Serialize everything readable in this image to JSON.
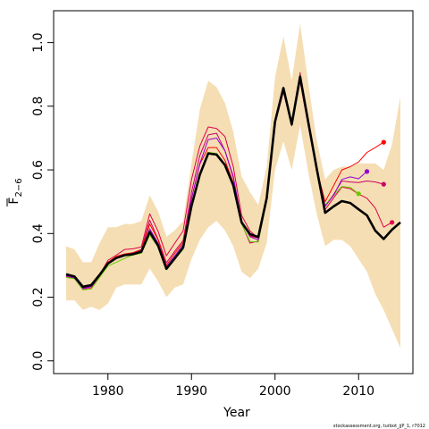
{
  "chart_data": {
    "type": "line",
    "xlabel": "Year",
    "ylabel_main": "F",
    "ylabel_sub": "2−6",
    "credit": "stockassessment.org, turbot_jjP_1, r7012",
    "xlim": [
      1973.5,
      2016.5
    ],
    "ylim": [
      -0.04,
      1.1
    ],
    "xticks": [
      1980,
      1990,
      2000,
      2010
    ],
    "yticks": [
      0.0,
      0.2,
      0.4,
      0.6,
      0.8,
      1.0
    ],
    "ytick_labels": [
      "0.0",
      "0.2",
      "0.4",
      "0.6",
      "0.8",
      "1.0"
    ],
    "colors": {
      "band": "#f5deb3",
      "main": "#000000",
      "retro": [
        "#ff1493",
        "#e0004a",
        "#cc0066",
        "#66cc00",
        "#ff0000",
        "#9400d3"
      ]
    },
    "band": {
      "x": [
        1975,
        1976,
        1977,
        1978,
        1979,
        1980,
        1981,
        1982,
        1983,
        1984,
        1985,
        1986,
        1987,
        1988,
        1989,
        1990,
        1991,
        1992,
        1993,
        1994,
        1995,
        1996,
        1997,
        1998,
        1999,
        2000,
        2001,
        2002,
        2003,
        2004,
        2005,
        2006,
        2007,
        2008,
        2009,
        2010,
        2011,
        2012,
        2013,
        2014,
        2015
      ],
      "upper": [
        0.36,
        0.35,
        0.31,
        0.31,
        0.37,
        0.42,
        0.42,
        0.43,
        0.43,
        0.44,
        0.52,
        0.47,
        0.39,
        0.41,
        0.44,
        0.62,
        0.79,
        0.88,
        0.86,
        0.81,
        0.72,
        0.58,
        0.53,
        0.49,
        0.61,
        0.89,
        1.02,
        0.88,
        1.06,
        0.87,
        0.69,
        0.57,
        0.6,
        0.61,
        0.61,
        0.62,
        0.62,
        0.62,
        0.6,
        0.68,
        0.83
      ],
      "lower": [
        0.19,
        0.19,
        0.16,
        0.17,
        0.16,
        0.18,
        0.23,
        0.24,
        0.24,
        0.24,
        0.29,
        0.25,
        0.2,
        0.23,
        0.24,
        0.32,
        0.38,
        0.42,
        0.44,
        0.41,
        0.36,
        0.28,
        0.26,
        0.29,
        0.37,
        0.6,
        0.69,
        0.6,
        0.74,
        0.59,
        0.46,
        0.36,
        0.38,
        0.38,
        0.36,
        0.32,
        0.28,
        0.21,
        0.16,
        0.1,
        0.04
      ]
    },
    "series": [
      {
        "x": [
          1975,
          1976,
          1977,
          1978,
          1979,
          1980,
          1981,
          1982,
          1983,
          1984,
          1985,
          1986,
          1987,
          1988,
          1989,
          1990,
          1991,
          1992,
          1993,
          1994,
          1995,
          1996,
          1997,
          1998,
          1999,
          2000,
          2001,
          2002,
          2003,
          2004,
          2005,
          2006,
          2007,
          2008,
          2009,
          2010,
          2011,
          2012,
          2013,
          2014,
          2015
        ],
        "values": [
          0.272,
          0.265,
          0.233,
          0.238,
          0.27,
          0.306,
          0.323,
          0.332,
          0.335,
          0.343,
          0.405,
          0.362,
          0.289,
          0.322,
          0.356,
          0.487,
          0.585,
          0.652,
          0.648,
          0.615,
          0.552,
          0.435,
          0.398,
          0.389,
          0.511,
          0.751,
          0.857,
          0.743,
          0.893,
          0.747,
          0.602,
          0.465,
          0.485,
          0.502,
          0.496,
          0.476,
          0.457,
          0.409,
          0.383,
          0.412,
          0.435
        ]
      },
      {
        "x": [
          1975,
          1976,
          1977,
          1978,
          1979,
          1980,
          1981,
          1982,
          1983,
          1984,
          1985,
          1986,
          1987,
          1988,
          1989,
          1990,
          1991,
          1992,
          1993,
          1994,
          1995,
          1996,
          1997,
          1998,
          1999,
          2000,
          2001,
          2002,
          2003,
          2004,
          2005,
          2006,
          2007,
          2008,
          2009,
          2010,
          2011,
          2012,
          2013,
          2014
        ],
        "values": [
          0.268,
          0.262,
          0.229,
          0.232,
          0.27,
          0.316,
          0.332,
          0.35,
          0.352,
          0.358,
          0.462,
          0.407,
          0.33,
          0.37,
          0.408,
          0.57,
          0.675,
          0.735,
          0.73,
          0.705,
          0.61,
          0.457,
          0.408,
          0.385,
          0.505,
          0.745,
          0.845,
          0.738,
          0.878,
          0.735,
          0.594,
          0.475,
          0.512,
          0.546,
          0.541,
          0.524,
          0.511,
          0.48,
          0.42,
          0.435
        ]
      },
      {
        "x": [
          1975,
          1976,
          1977,
          1978,
          1979,
          1980,
          1981,
          1982,
          1983,
          1984,
          1985,
          1986,
          1987,
          1988,
          1989,
          1990,
          1991,
          1992,
          1993,
          1994,
          1995,
          1996,
          1997,
          1998,
          1999,
          2000,
          2001,
          2002,
          2003,
          2004,
          2005,
          2006,
          2007,
          2008,
          2009,
          2010,
          2011,
          2012,
          2013
        ],
        "values": [
          0.265,
          0.26,
          0.226,
          0.228,
          0.265,
          0.31,
          0.322,
          0.33,
          0.34,
          0.35,
          0.442,
          0.382,
          0.308,
          0.345,
          0.378,
          0.53,
          0.645,
          0.71,
          0.715,
          0.66,
          0.575,
          0.432,
          0.37,
          0.376,
          0.505,
          0.748,
          0.848,
          0.742,
          0.905,
          0.742,
          0.598,
          0.487,
          0.522,
          0.565,
          0.562,
          0.56,
          0.565,
          0.562,
          0.555
        ]
      },
      {
        "x": [
          1975,
          1976,
          1977,
          1978,
          1979,
          1980,
          1981,
          1982,
          1983,
          1984,
          1985,
          1986,
          1987,
          1988,
          1989,
          1990,
          1991,
          1992,
          1993,
          1994,
          1995,
          1996,
          1997,
          1998,
          1999,
          2000,
          2001,
          2002,
          2003,
          2004,
          2005,
          2006,
          2007,
          2008,
          2009,
          2010
        ],
        "values": [
          0.262,
          0.258,
          0.223,
          0.226,
          0.262,
          0.298,
          0.31,
          0.322,
          0.333,
          0.338,
          0.395,
          0.358,
          0.29,
          0.32,
          0.35,
          0.48,
          0.585,
          0.655,
          0.652,
          0.615,
          0.55,
          0.43,
          0.375,
          0.373,
          0.505,
          0.75,
          0.85,
          0.742,
          0.898,
          0.745,
          0.6,
          0.49,
          0.52,
          0.548,
          0.545,
          0.525
        ]
      },
      {
        "x": [
          1975,
          1976,
          1977,
          1978,
          1979,
          1980,
          1981,
          1982,
          1983,
          1984,
          1985,
          1986,
          1987,
          1988,
          1989,
          1990,
          1991,
          1992,
          1993,
          1994,
          1995,
          1996,
          1997,
          1998,
          1999,
          2000,
          2001,
          2002,
          2003,
          2004,
          2005,
          2006,
          2007,
          2008,
          2009,
          2010,
          2011,
          2012,
          2013
        ],
        "values": [
          0.27,
          0.262,
          0.23,
          0.235,
          0.27,
          0.31,
          0.328,
          0.336,
          0.34,
          0.348,
          0.43,
          0.38,
          0.3,
          0.338,
          0.372,
          0.51,
          0.618,
          0.67,
          0.67,
          0.63,
          0.56,
          0.44,
          0.392,
          0.386,
          0.51,
          0.752,
          0.855,
          0.745,
          0.89,
          0.745,
          0.6,
          0.5,
          0.55,
          0.6,
          0.61,
          0.625,
          0.655,
          0.67,
          0.687
        ]
      },
      {
        "x": [
          1975,
          1976,
          1977,
          1978,
          1979,
          1980,
          1981,
          1982,
          1983,
          1984,
          1985,
          1986,
          1987,
          1988,
          1989,
          1990,
          1991,
          1992,
          1993,
          1994,
          1995,
          1996,
          1997,
          1998,
          1999,
          2000,
          2001,
          2002,
          2003,
          2004,
          2005,
          2006,
          2007,
          2008,
          2009,
          2010,
          2011
        ],
        "values": [
          0.268,
          0.26,
          0.228,
          0.233,
          0.268,
          0.305,
          0.322,
          0.33,
          0.338,
          0.345,
          0.415,
          0.37,
          0.295,
          0.33,
          0.365,
          0.51,
          0.62,
          0.695,
          0.7,
          0.66,
          0.58,
          0.44,
          0.39,
          0.38,
          0.508,
          0.75,
          0.852,
          0.74,
          0.895,
          0.748,
          0.6,
          0.485,
          0.52,
          0.57,
          0.578,
          0.572,
          0.595
        ]
      }
    ]
  }
}
